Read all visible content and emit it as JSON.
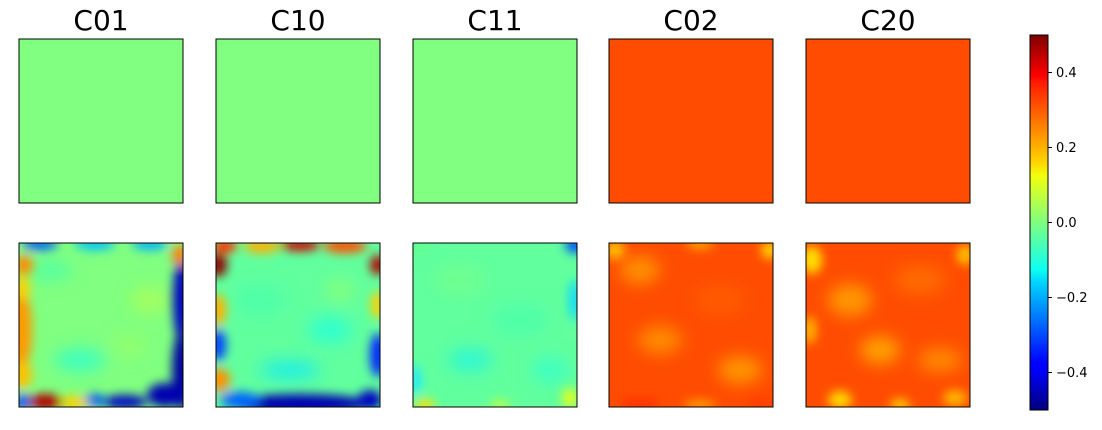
{
  "chart_data": {
    "type": "heatmap",
    "colormap": "jet",
    "columns": [
      "C01",
      "C10",
      "C11",
      "C02",
      "C20"
    ],
    "rows": 2,
    "top_row_uniform_values": [
      0.0,
      0.0,
      0.0,
      0.3,
      0.3
    ],
    "bottom_row": [
      {
        "title": "C01",
        "center_value": 0.0,
        "edge_pattern": "left and bottom edges strongly positive (about 0.3 to 0.5), right edge and corners strongly negative (about -0.5), interior near 0"
      },
      {
        "title": "C10",
        "center_value": -0.03,
        "edge_pattern": "top and right edges positive (about 0.3 to 0.5), left and bottom edges negative (about -0.5), interior near -0.05"
      },
      {
        "title": "C11",
        "center_value": -0.03,
        "edge_pattern": "nearly uniform around -0.05, slight negative corners, small positive spots along bottom edge"
      },
      {
        "title": "C02",
        "center_value": 0.3,
        "edge_pattern": "mostly about 0.3, mild variation 0.25 to 0.35, warmer along bottom edge"
      },
      {
        "title": "C20",
        "center_value": 0.3,
        "edge_pattern": "mostly about 0.3, mild variation 0.2 to 0.35, yellowish spots near left and bottom edges"
      }
    ],
    "colorbar": {
      "vmin": -0.5,
      "vmax": 0.5,
      "ticks": [
        0.4,
        0.2,
        0.0,
        -0.2,
        -0.4
      ],
      "tick_labels": [
        "0.4",
        "0.2",
        "0.0",
        "−0.2",
        "−0.4"
      ]
    },
    "axes_ticks": "hidden"
  },
  "colors": {
    "frame": "#000000",
    "background": "#ffffff"
  }
}
